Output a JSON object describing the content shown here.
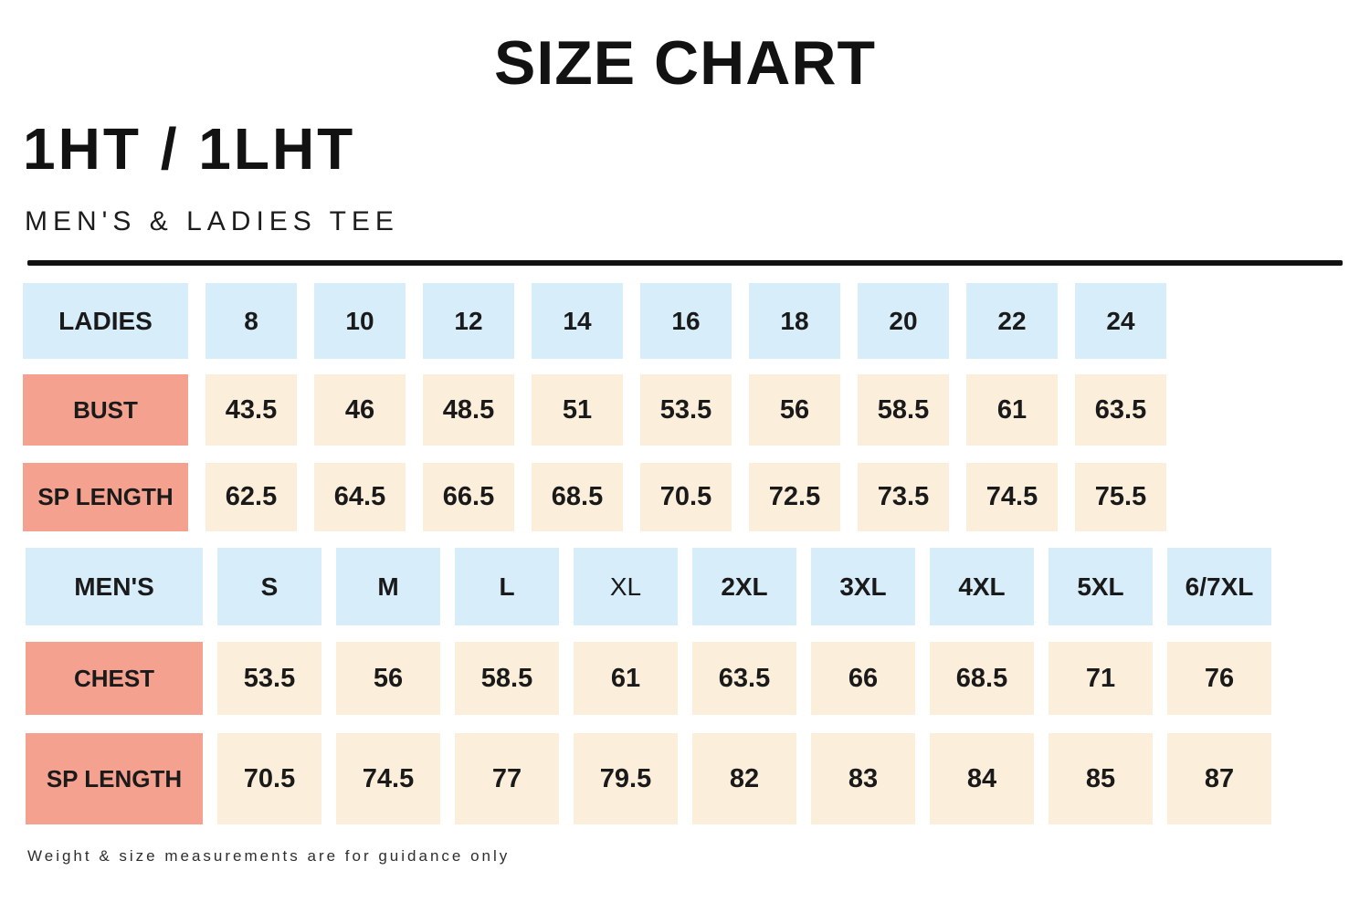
{
  "header": {
    "title": "SIZE CHART",
    "product_code": "1HT / 1LHT",
    "subtitle": "MEN'S & LADIES TEE"
  },
  "colors": {
    "header_cell_blue": "#d7edf9",
    "label_cell_salmon": "#f4a28f",
    "value_cell_cream": "#fbefdc",
    "divider_black": "#121212",
    "text": "#1a1a1a"
  },
  "chart_data": [
    {
      "type": "table",
      "title": "Ladies tee measurements",
      "columns": [
        "LADIES",
        "8",
        "10",
        "12",
        "14",
        "16",
        "18",
        "20",
        "22",
        "24"
      ],
      "rows": [
        [
          "BUST",
          43.5,
          46,
          48.5,
          51,
          53.5,
          56,
          58.5,
          61,
          63.5
        ],
        [
          "SP LENGTH",
          62.5,
          64.5,
          66.5,
          68.5,
          70.5,
          72.5,
          73.5,
          74.5,
          75.5
        ]
      ]
    },
    {
      "type": "table",
      "title": "Men's tee measurements",
      "columns": [
        "MEN'S",
        "S",
        "M",
        "L",
        "XL",
        "2XL",
        "3XL",
        "4XL",
        "5XL",
        "6/7XL"
      ],
      "rows": [
        [
          "CHEST",
          53.5,
          56,
          58.5,
          61,
          63.5,
          66,
          68.5,
          71,
          76
        ],
        [
          "SP LENGTH",
          70.5,
          74.5,
          77,
          79.5,
          82,
          83,
          84,
          85,
          87
        ]
      ]
    }
  ],
  "footer": {
    "note": "Weight & size measurements are for guidance only"
  }
}
